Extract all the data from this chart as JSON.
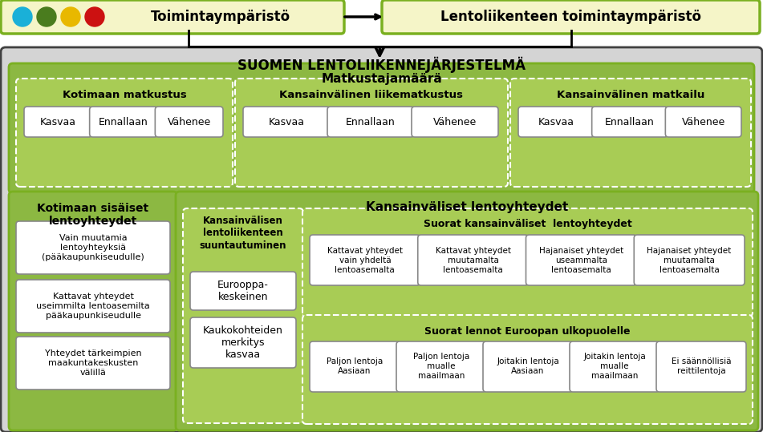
{
  "white": "#ffffff",
  "yellow_box": "#f5f5c8",
  "green_border": "#7ab020",
  "green_section_bg": "#8cb842",
  "green_sub_bg": "#9ec84a",
  "green_sub_fill": "#a8cc55",
  "gray_main": "#d4d4d4",
  "dark_border": "#404040",
  "gray_border": "#888888",
  "black": "#000000",
  "dots": [
    "#1ab0d8",
    "#4a7c1e",
    "#e8b800",
    "#cc1111"
  ],
  "header_top_text": [
    "Toimintaympäristö",
    "Lentoliikenteen toimintaympäristö"
  ],
  "main_title": "SUOMEN LENTOLIIKENNEJÄRJESTELMÄ",
  "matkustaja_title": "Matkustajamäärä",
  "kotimaan_title": "Kotimaan matkustus",
  "kansainvalinen_liike_title": "Kansainvälinen liikematkustus",
  "kansainvalinen_matkailu_title": "Kansainvälinen matkailu",
  "scenario_labels": [
    "Kasvaa",
    "Ennallaan",
    "Vähenee"
  ],
  "kotimaan_sisaiset_title": "Kotimaan sisäiset\nlentoyhteydet",
  "kansainvaliset_title": "Kansainväliset lentoyhteydet",
  "suuntautuminen_title": "Kansainvälisen\nlentoliikenteen\nsuuntautuminen",
  "eurooppa": "Eurooppa-\nkeskeinen",
  "kaukokohteet": "Kaukokohteiden\nmerkitys\nkasvaa",
  "suorat_kansainvaliset": "Suorat kansainväliset  lentoyhteydet",
  "suorat_lennot": "Suorat lennot Euroopan ulkopuolelle",
  "kotimaan_items": [
    "Vain muutamia\nlentoyhteyksiä\n(pääkaupunkiseudulle)",
    "Kattavat yhteydet\nuseimmilta lentoasemilta\npääkaupunkiseudulle",
    "Yhteydet tärkeimpien\nmaakuntakeskusten\nvälillä"
  ],
  "suorat_kv_items": [
    "Kattavat yhteydet\nvain yhdeltä\nlentoasemalta",
    "Kattavat yhteydet\nmuutamalta\nlentoasemalta",
    "Hajanaiset yhteydet\nuseammalta\nlentoasemalta",
    "Hajanaiset yhteydet\nmuutamalta\nlentoasemalta"
  ],
  "suorat_lennot_items": [
    "Paljon lentoja\nAasiaan",
    "Paljon lentoja\nmualle\nmaailmaan",
    "Joitakin lentoja\nAasiaan",
    "Joitakin lentoja\nmualle\nmaailmaan",
    "Ei säännöllisiä\nreittilentoja"
  ]
}
